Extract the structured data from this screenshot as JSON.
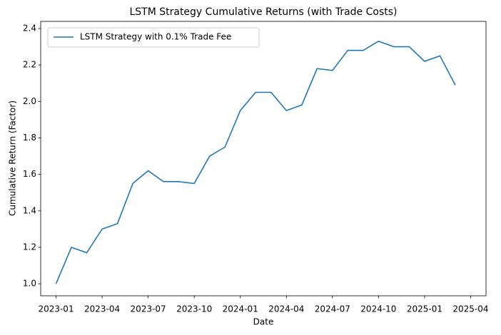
{
  "chart_data": {
    "type": "line",
    "title": "LSTM Strategy Cumulative Returns (with Trade Costs)",
    "x_label": "Date",
    "y_label": "Cumulative Return (Factor)",
    "x": [
      "2023-01",
      "2023-02",
      "2023-03",
      "2023-04",
      "2023-05",
      "2023-06",
      "2023-07",
      "2023-08",
      "2023-09",
      "2023-10",
      "2023-11",
      "2023-12",
      "2024-01",
      "2024-02",
      "2024-03",
      "2024-04",
      "2024-05",
      "2024-06",
      "2024-07",
      "2024-08",
      "2024-09",
      "2024-10",
      "2024-11",
      "2024-12",
      "2025-01",
      "2025-02",
      "2025-03"
    ],
    "series": [
      {
        "name": "LSTM Strategy with 0.1% Trade Fee",
        "color": "#1f77b4",
        "values": [
          1.0,
          1.2,
          1.17,
          1.3,
          1.33,
          1.55,
          1.62,
          1.56,
          1.56,
          1.55,
          1.7,
          1.75,
          1.95,
          2.05,
          2.05,
          1.95,
          1.98,
          2.18,
          2.17,
          2.28,
          2.28,
          2.33,
          2.3,
          2.3,
          2.22,
          2.25,
          2.09
        ]
      }
    ],
    "xlim": [
      "2022-12",
      "2025-05"
    ],
    "xticks": [
      "2023-01",
      "2023-04",
      "2023-07",
      "2023-10",
      "2024-01",
      "2024-04",
      "2024-07",
      "2024-10",
      "2025-01",
      "2025-04"
    ],
    "ylim": [
      0.934,
      2.439
    ],
    "yticks": [
      {
        "value": 1,
        "label": "1.0"
      },
      1.2,
      1.4,
      1.6,
      1.8,
      {
        "value": 2,
        "label": "2.0"
      },
      2.2,
      2.4
    ],
    "legend": "upper left",
    "grid": false
  }
}
